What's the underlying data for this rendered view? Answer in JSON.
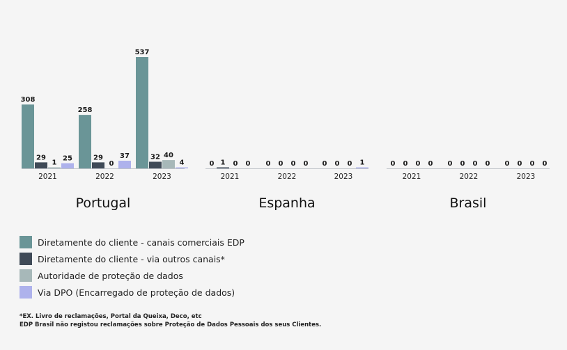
{
  "chart_data": {
    "type": "bar",
    "categories": [
      "2021",
      "2022",
      "2023"
    ],
    "series": [
      {
        "name": "Diretamente do cliente - canais comerciais EDP",
        "color": "#6a9597"
      },
      {
        "name": "Diretamente do cliente - via outros canais*",
        "color": "#3f4a57"
      },
      {
        "name": "Autoridade de proteção de dados",
        "color": "#a7b8b9"
      },
      {
        "name": "Via DPO (Encarregado de proteção de dados)",
        "color": "#aeb2ec"
      }
    ],
    "panels": [
      {
        "title": "Portugal",
        "values": [
          [
            308,
            29,
            1,
            25
          ],
          [
            258,
            29,
            0,
            37
          ],
          [
            537,
            32,
            40,
            4
          ]
        ]
      },
      {
        "title": "Espanha",
        "values": [
          [
            0,
            1,
            0,
            0
          ],
          [
            0,
            0,
            0,
            0
          ],
          [
            0,
            0,
            0,
            1
          ]
        ]
      },
      {
        "title": "Brasil",
        "values": [
          [
            0,
            0,
            0,
            0
          ],
          [
            0,
            0,
            0,
            0
          ],
          [
            0,
            0,
            0,
            0
          ]
        ]
      }
    ],
    "ylim": [
      0,
      537
    ]
  },
  "footnotes": [
    "*EX. Livro de reclamações, Portal da Queixa, Deco, etc",
    "EDP Brasil não registou reclamações sobre Proteção de Dados Pessoais dos seus Clientes."
  ]
}
